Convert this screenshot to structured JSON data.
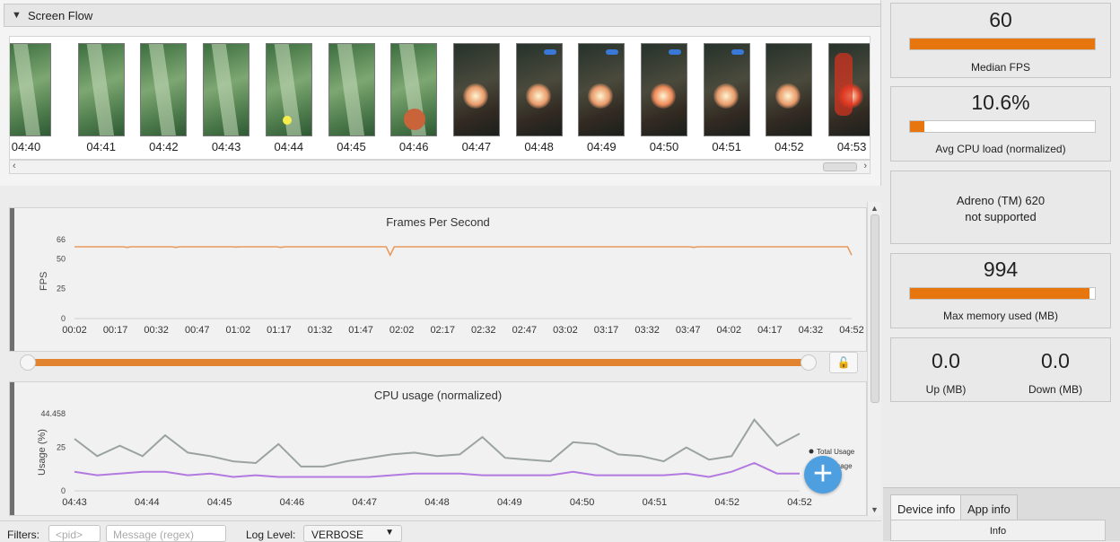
{
  "screen_flow": {
    "title": "Screen Flow",
    "frames": [
      {
        "time": "04:40",
        "scene": "green"
      },
      {
        "time": "04:41",
        "scene": "green"
      },
      {
        "time": "04:42",
        "scene": "green"
      },
      {
        "time": "04:43",
        "scene": "green"
      },
      {
        "time": "04:44",
        "scene": "green"
      },
      {
        "time": "04:45",
        "scene": "green"
      },
      {
        "time": "04:46",
        "scene": "green"
      },
      {
        "time": "04:47",
        "scene": "dark"
      },
      {
        "time": "04:48",
        "scene": "dark"
      },
      {
        "time": "04:49",
        "scene": "dark"
      },
      {
        "time": "04:50",
        "scene": "dark"
      },
      {
        "time": "04:51",
        "scene": "dark"
      },
      {
        "time": "04:52",
        "scene": "dark"
      },
      {
        "time": "04:53",
        "scene": "dark"
      }
    ]
  },
  "fps_chart": {
    "title": "Frames Per Second",
    "ylabel": "FPS",
    "ylim": [
      0,
      66
    ],
    "yticks": [
      "66",
      "50",
      "25",
      "0"
    ],
    "ytick_values": [
      66,
      50,
      25,
      0
    ],
    "xticks": [
      "00:02",
      "00:17",
      "00:32",
      "00:47",
      "01:02",
      "01:17",
      "01:32",
      "01:47",
      "02:02",
      "02:17",
      "02:32",
      "02:47",
      "03:02",
      "03:17",
      "03:32",
      "03:47",
      "04:02",
      "04:17",
      "04:32",
      "04:52"
    ],
    "series_values": [
      60,
      60,
      60,
      60,
      60,
      60,
      60,
      60,
      60,
      60,
      60,
      60,
      60,
      59.5,
      60,
      60,
      60,
      60,
      60,
      60,
      60,
      60,
      60,
      60,
      60,
      59.5,
      60,
      60,
      60,
      60,
      60,
      60,
      60,
      60,
      60,
      60,
      60,
      60,
      60,
      60,
      59.8,
      60,
      60,
      60,
      60,
      60,
      60,
      60,
      60,
      60,
      60,
      59.5,
      60,
      60,
      60,
      60,
      60,
      60,
      60,
      60,
      60,
      60,
      60,
      60,
      60,
      60,
      60,
      60,
      60,
      60,
      60,
      60,
      60,
      60,
      60,
      60,
      60,
      60,
      53,
      60,
      60,
      60,
      60,
      60,
      60,
      60,
      60,
      60,
      60,
      60,
      60,
      60,
      60,
      60,
      60,
      60,
      60,
      60,
      60,
      60,
      60,
      60,
      60,
      60,
      60,
      60,
      60,
      60,
      60,
      60,
      60,
      60,
      60,
      60,
      60,
      60,
      60,
      60,
      60,
      60,
      60,
      60,
      60,
      60,
      60,
      60,
      60,
      60,
      60,
      60,
      60,
      60,
      60,
      60,
      60,
      60,
      60,
      60,
      60,
      60,
      60,
      60,
      60,
      60,
      60,
      60,
      60,
      60,
      60,
      60,
      60,
      60,
      60,
      59.5,
      60,
      60,
      60,
      60,
      60,
      60,
      60,
      60,
      60,
      60,
      60,
      60,
      60,
      60,
      60,
      60,
      60,
      60,
      60,
      60,
      60,
      60,
      60,
      60,
      60,
      60,
      60,
      60,
      60,
      60,
      60,
      60,
      60,
      60,
      60,
      60,
      60,
      60,
      53
    ],
    "color": "#e89a5e"
  },
  "cpu_chart": {
    "title": "CPU usage (normalized)",
    "ylabel": "Usage (%)",
    "ylim": [
      0,
      44.458
    ],
    "yticks": [
      "44.458",
      "25",
      "0"
    ],
    "ytick_values": [
      44.458,
      25,
      0
    ],
    "xticks": [
      "04:43",
      "04:44",
      "04:45",
      "04:46",
      "04:47",
      "04:48",
      "04:49",
      "04:50",
      "04:51",
      "04:52",
      "04:52"
    ],
    "series": [
      {
        "name": "Total Usage",
        "color": "#9aa39e",
        "values": [
          30,
          20,
          26,
          20,
          32,
          22,
          20,
          17,
          16,
          27,
          14,
          14,
          17,
          19,
          21,
          22,
          20,
          21,
          31,
          19,
          18,
          17,
          28,
          27,
          21,
          20,
          17,
          25,
          18,
          20,
          41,
          26,
          33
        ]
      },
      {
        "name": "App Usage",
        "color": "#b27ae0",
        "values": [
          11,
          9,
          10,
          11,
          11,
          9,
          10,
          8,
          9,
          8,
          8,
          8,
          8,
          8,
          9,
          10,
          10,
          10,
          9,
          9,
          9,
          9,
          11,
          9,
          9,
          9,
          9,
          10,
          8,
          11,
          16,
          10,
          10
        ]
      }
    ],
    "legend_position": "right",
    "legend_labels": [
      "Total Usage",
      "App Usage"
    ]
  },
  "range_lock_icon": "unlock-icon",
  "stats": {
    "median_fps": {
      "value": "60",
      "label": "Median FPS",
      "fill": 1.0
    },
    "avg_cpu": {
      "value": "10.6%",
      "label": "Avg CPU load (normalized)",
      "fill": 0.08
    },
    "gpu": {
      "line1": "Adreno (TM) 620",
      "line2": "not supported"
    },
    "max_memory": {
      "value": "994",
      "label": "Max memory used (MB)",
      "fill": 0.97
    },
    "network": {
      "up_value": "0.0",
      "up_label": "Up (MB)",
      "down_value": "0.0",
      "down_label": "Down (MB)"
    }
  },
  "tabs": [
    {
      "label": "Device info",
      "active": true
    },
    {
      "label": "App info",
      "active": false
    }
  ],
  "info_header": "Info",
  "filters": {
    "label": "Filters:",
    "pid_placeholder": "<pid>",
    "message_placeholder": "Message (regex)",
    "log_level_label": "Log Level:",
    "log_level_value": "VERBOSE"
  },
  "colors": {
    "accent": "#e7760f",
    "fab": "#4e9fe0"
  }
}
